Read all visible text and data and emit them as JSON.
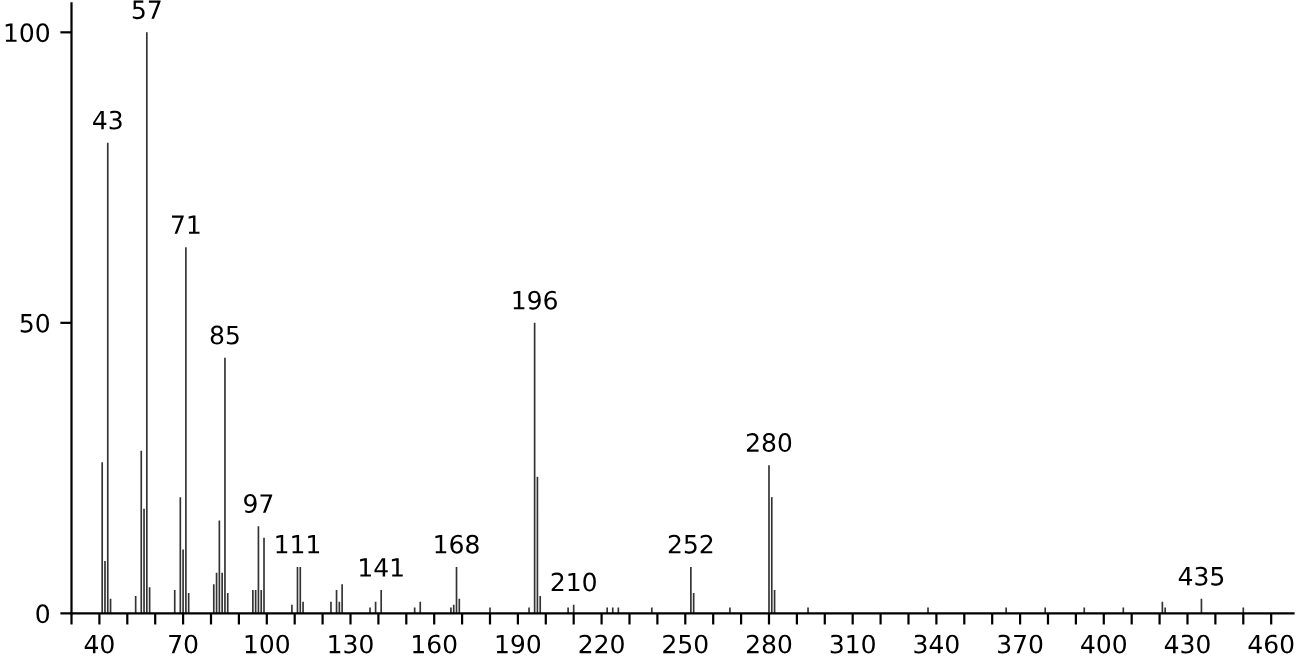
{
  "chart_data": {
    "type": "bar",
    "x": [
      41,
      42,
      43,
      44,
      53,
      55,
      56,
      57,
      58,
      67,
      69,
      70,
      71,
      72,
      81,
      82,
      83,
      84,
      85,
      86,
      95,
      96,
      97,
      98,
      99,
      109,
      111,
      112,
      113,
      123,
      125,
      126,
      127,
      137,
      139,
      141,
      153,
      155,
      166,
      167,
      168,
      169,
      180,
      182,
      194,
      196,
      197,
      198,
      208,
      210,
      211,
      222,
      224,
      226,
      238,
      252,
      253,
      266,
      280,
      281,
      282,
      294,
      309,
      323,
      337,
      351,
      365,
      379,
      393,
      407,
      421,
      422,
      435,
      449,
      450
    ],
    "values": [
      26,
      9,
      81,
      2.5,
      3,
      28,
      18,
      100,
      4.5,
      4,
      20,
      11,
      63,
      3.5,
      5,
      7,
      16,
      7,
      44,
      3.5,
      4,
      4,
      15,
      4,
      13,
      1.5,
      8,
      8,
      2,
      2,
      4,
      2,
      5,
      1,
      2,
      4,
      1,
      2,
      1,
      1.5,
      8,
      2.5,
      1,
      null,
      1,
      50,
      23.5,
      3,
      1,
      1.5,
      null,
      1,
      1,
      1,
      1,
      8,
      3.5,
      1,
      25.5,
      20,
      4,
      1,
      null,
      null,
      1,
      null,
      1,
      1,
      1,
      1,
      2,
      1,
      2.5,
      null,
      1
    ],
    "color": "#333333",
    "xlim": [
      30,
      468
    ],
    "ylim": [
      0,
      105
    ],
    "xticks": [
      {
        "value": 30,
        "label": null
      },
      40,
      {
        "value": 50,
        "label": null
      },
      {
        "value": 60,
        "label": null
      },
      70,
      {
        "value": 80,
        "label": null
      },
      {
        "value": 90,
        "label": null
      },
      100,
      {
        "value": 110,
        "label": null
      },
      {
        "value": 120,
        "label": null
      },
      130,
      {
        "value": 140,
        "label": null
      },
      {
        "value": 150,
        "label": null
      },
      160,
      {
        "value": 170,
        "label": null
      },
      {
        "value": 180,
        "label": null
      },
      190,
      {
        "value": 200,
        "label": null
      },
      {
        "value": 210,
        "label": null
      },
      220,
      {
        "value": 230,
        "label": null
      },
      {
        "value": 240,
        "label": null
      },
      250,
      {
        "value": 260,
        "label": null
      },
      {
        "value": 270,
        "label": null
      },
      280,
      {
        "value": 290,
        "label": null
      },
      {
        "value": 300,
        "label": null
      },
      310,
      {
        "value": 320,
        "label": null
      },
      {
        "value": 330,
        "label": null
      },
      340,
      {
        "value": 350,
        "label": null
      },
      {
        "value": 360,
        "label": null
      },
      370,
      {
        "value": 380,
        "label": null
      },
      {
        "value": 390,
        "label": null
      },
      400,
      {
        "value": 410,
        "label": null
      },
      {
        "value": 420,
        "label": null
      },
      430,
      {
        "value": 440,
        "label": null
      },
      {
        "value": 450,
        "label": null
      },
      460
    ],
    "yticks": [
      0,
      50,
      100
    ],
    "grid": false,
    "annotations": [
      {
        "text": "43",
        "x": 43,
        "y": 81
      },
      {
        "text": "57",
        "x": 57,
        "y": 100
      },
      {
        "text": "71",
        "x": 71,
        "y": 63
      },
      {
        "text": "85",
        "x": 85,
        "y": 44
      },
      {
        "text": "97",
        "x": 97,
        "y": 15
      },
      {
        "text": "111",
        "x": 111,
        "y": 8
      },
      {
        "text": "141",
        "x": 141,
        "y": 4
      },
      {
        "text": "168",
        "x": 168,
        "y": 8
      },
      {
        "text": "196",
        "x": 196,
        "y": 50
      },
      {
        "text": "210",
        "x": 210,
        "y": 1.5
      },
      {
        "text": "252",
        "x": 252,
        "y": 8
      },
      {
        "text": "280",
        "x": 280,
        "y": 25.5
      },
      {
        "text": "435",
        "x": 435,
        "y": 2.5
      }
    ]
  }
}
